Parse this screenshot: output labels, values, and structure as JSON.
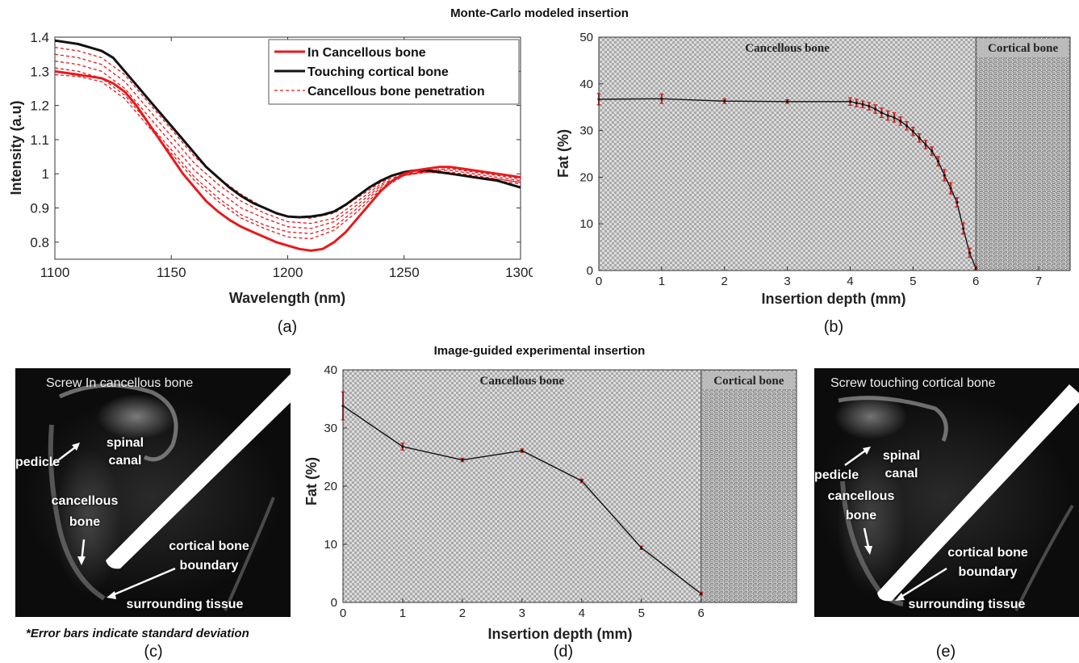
{
  "headers": {
    "top": "Monte-Carlo modeled insertion",
    "bottom": "Image-guided experimental insertion"
  },
  "panel_labels": {
    "a": "(a)",
    "b": "(b)",
    "c": "(c)",
    "d": "(d)",
    "e": "(e)"
  },
  "note": "*Error bars indicate standard deviation",
  "images": {
    "c": {
      "title": "Screw In  cancellous bone",
      "labels": {
        "pedicle": "pedicle",
        "spinal_canal_1": "spinal",
        "spinal_canal_2": "canal",
        "cancellous_1": "cancellous",
        "cancellous_2": "bone",
        "cortical_1": "cortical bone",
        "cortical_2": "boundary",
        "surrounding": "surrounding tissue"
      }
    },
    "e": {
      "title": "Screw touching cortical bone",
      "labels": {
        "pedicle": "pedicle",
        "spinal_canal_1": "spinal",
        "spinal_canal_2": "canal",
        "cancellous_1": "cancellous",
        "cancellous_2": "bone",
        "cortical_1": "cortical bone",
        "cortical_2": "boundary",
        "surrounding": "surrounding tissue"
      }
    }
  },
  "chart_data": [
    {
      "id": "a",
      "type": "line",
      "title": "",
      "xlabel": "Wavelength (nm)",
      "ylabel": "Intensity (a.u)",
      "xlim": [
        1100,
        1300
      ],
      "ylim": [
        0.75,
        1.4
      ],
      "xticks": [
        1100,
        1150,
        1200,
        1250,
        1300
      ],
      "yticks": [
        0.8,
        0.9,
        1,
        1.1,
        1.2,
        1.3,
        1.4
      ],
      "legend_position": "top-right",
      "legend": [
        {
          "label": "In Cancellous bone",
          "color": "#e8191c",
          "style": "solid-thick"
        },
        {
          "label": "Touching cortical bone",
          "color": "#111111",
          "style": "solid-thick"
        },
        {
          "label": "Cancellous bone penetration",
          "color": "#e8191c",
          "style": "dashed"
        }
      ],
      "series": [
        {
          "name": "Touching cortical bone",
          "color": "#111111",
          "style": "solid",
          "x": [
            1100,
            1105,
            1110,
            1115,
            1120,
            1125,
            1130,
            1135,
            1140,
            1145,
            1150,
            1155,
            1160,
            1165,
            1170,
            1175,
            1180,
            1185,
            1190,
            1195,
            1200,
            1205,
            1210,
            1215,
            1220,
            1225,
            1230,
            1235,
            1240,
            1245,
            1250,
            1255,
            1260,
            1265,
            1270,
            1275,
            1280,
            1285,
            1290,
            1295,
            1300
          ],
          "y": [
            1.39,
            1.385,
            1.38,
            1.37,
            1.36,
            1.34,
            1.3,
            1.26,
            1.22,
            1.18,
            1.14,
            1.1,
            1.06,
            1.02,
            0.99,
            0.96,
            0.935,
            0.915,
            0.9,
            0.885,
            0.875,
            0.873,
            0.875,
            0.88,
            0.89,
            0.91,
            0.935,
            0.96,
            0.98,
            0.995,
            1.005,
            1.01,
            1.01,
            1.005,
            1.0,
            0.995,
            0.99,
            0.985,
            0.98,
            0.97,
            0.96
          ]
        },
        {
          "name": "In Cancellous bone",
          "color": "#e8191c",
          "style": "solid",
          "x": [
            1100,
            1105,
            1110,
            1115,
            1120,
            1125,
            1130,
            1135,
            1140,
            1145,
            1150,
            1155,
            1160,
            1165,
            1170,
            1175,
            1180,
            1185,
            1190,
            1195,
            1200,
            1205,
            1210,
            1215,
            1220,
            1225,
            1230,
            1235,
            1240,
            1245,
            1250,
            1255,
            1260,
            1265,
            1270,
            1275,
            1280,
            1285,
            1290,
            1295,
            1300
          ],
          "y": [
            1.3,
            1.295,
            1.29,
            1.285,
            1.28,
            1.265,
            1.24,
            1.2,
            1.15,
            1.1,
            1.05,
            1.0,
            0.96,
            0.92,
            0.89,
            0.865,
            0.845,
            0.83,
            0.815,
            0.8,
            0.79,
            0.78,
            0.775,
            0.78,
            0.8,
            0.83,
            0.87,
            0.91,
            0.95,
            0.98,
            1.0,
            1.01,
            1.015,
            1.02,
            1.02,
            1.015,
            1.01,
            1.005,
            1.0,
            0.995,
            0.99
          ]
        },
        {
          "name": "Cancellous bone penetration 1",
          "color": "#e8191c",
          "style": "dashed",
          "x": [
            1100,
            1110,
            1120,
            1130,
            1140,
            1150,
            1160,
            1170,
            1180,
            1190,
            1200,
            1210,
            1220,
            1230,
            1240,
            1250,
            1260,
            1270,
            1280,
            1290,
            1300
          ],
          "y": [
            1.37,
            1.36,
            1.34,
            1.29,
            1.21,
            1.13,
            1.05,
            0.99,
            0.94,
            0.9,
            0.875,
            0.87,
            0.885,
            0.93,
            0.975,
            1.0,
            1.005,
            1.0,
            0.99,
            0.985,
            0.975
          ]
        },
        {
          "name": "Cancellous bone penetration 2",
          "color": "#e8191c",
          "style": "dashed",
          "x": [
            1100,
            1110,
            1120,
            1130,
            1140,
            1150,
            1160,
            1170,
            1180,
            1190,
            1200,
            1210,
            1220,
            1230,
            1240,
            1250,
            1260,
            1270,
            1280,
            1290,
            1300
          ],
          "y": [
            1.35,
            1.34,
            1.32,
            1.27,
            1.19,
            1.11,
            1.03,
            0.97,
            0.92,
            0.885,
            0.86,
            0.855,
            0.87,
            0.92,
            0.97,
            0.995,
            1.005,
            1.0,
            0.99,
            0.98,
            0.97
          ]
        },
        {
          "name": "Cancellous bone penetration 3",
          "color": "#e8191c",
          "style": "dashed",
          "x": [
            1100,
            1110,
            1120,
            1130,
            1140,
            1150,
            1160,
            1170,
            1180,
            1190,
            1200,
            1210,
            1220,
            1230,
            1240,
            1250,
            1260,
            1270,
            1280,
            1290,
            1300
          ],
          "y": [
            1.33,
            1.32,
            1.3,
            1.25,
            1.17,
            1.09,
            1.01,
            0.95,
            0.9,
            0.87,
            0.845,
            0.84,
            0.86,
            0.91,
            0.965,
            0.995,
            1.005,
            1.005,
            0.995,
            0.985,
            0.975
          ]
        },
        {
          "name": "Cancellous bone penetration 4",
          "color": "#e8191c",
          "style": "dashed",
          "x": [
            1100,
            1110,
            1120,
            1130,
            1140,
            1150,
            1160,
            1170,
            1180,
            1190,
            1200,
            1210,
            1220,
            1230,
            1240,
            1250,
            1260,
            1270,
            1280,
            1290,
            1300
          ],
          "y": [
            1.31,
            1.3,
            1.28,
            1.23,
            1.15,
            1.07,
            0.99,
            0.93,
            0.88,
            0.85,
            0.83,
            0.825,
            0.845,
            0.9,
            0.96,
            0.995,
            1.01,
            1.01,
            1.0,
            0.99,
            0.98
          ]
        },
        {
          "name": "Cancellous bone penetration 5",
          "color": "#e8191c",
          "style": "dashed",
          "x": [
            1100,
            1110,
            1120,
            1130,
            1140,
            1150,
            1160,
            1170,
            1180,
            1190,
            1200,
            1210,
            1220,
            1230,
            1240,
            1250,
            1260,
            1270,
            1280,
            1290,
            1300
          ],
          "y": [
            1.29,
            1.285,
            1.27,
            1.22,
            1.14,
            1.06,
            0.98,
            0.92,
            0.87,
            0.84,
            0.815,
            0.81,
            0.835,
            0.89,
            0.955,
            0.995,
            1.01,
            1.015,
            1.005,
            0.995,
            0.985
          ]
        }
      ]
    },
    {
      "id": "b",
      "type": "line",
      "title": "",
      "xlabel": "Insertion depth (mm)",
      "ylabel": "Fat (%)",
      "xlim": [
        0,
        7.5
      ],
      "ylim": [
        0,
        50
      ],
      "xticks": [
        0,
        1,
        2,
        3,
        4,
        5,
        6,
        7
      ],
      "yticks": [
        0,
        10,
        20,
        30,
        40,
        50
      ],
      "regions": [
        {
          "label": "Cancellous bone",
          "from": 0,
          "to": 6,
          "pattern": "checker"
        },
        {
          "label": "Cortical bone",
          "from": 6,
          "to": 7.5,
          "pattern": "dense"
        }
      ],
      "series": [
        {
          "name": "",
          "color": "#111111",
          "error_color": "#d11b1b",
          "x": [
            0,
            1,
            2,
            3,
            4,
            4.1,
            4.2,
            4.3,
            4.4,
            4.5,
            4.6,
            4.7,
            4.8,
            4.9,
            5.0,
            5.1,
            5.2,
            5.3,
            5.4,
            5.5,
            5.6,
            5.7,
            5.8,
            5.9,
            6.0
          ],
          "y": [
            36.7,
            36.8,
            36.3,
            36.2,
            36.2,
            35.9,
            35.6,
            35.2,
            34.6,
            33.8,
            33.2,
            32.8,
            32.0,
            31.0,
            29.8,
            28.4,
            27.0,
            25.6,
            23.4,
            20.4,
            17.6,
            14.6,
            9.0,
            3.8,
            0.5
          ],
          "err": [
            1.2,
            1.0,
            0.5,
            0.4,
            0.8,
            0.8,
            0.7,
            0.8,
            0.9,
            1.0,
            1.0,
            1.0,
            0.9,
            0.9,
            0.9,
            0.9,
            0.9,
            0.9,
            1.0,
            1.2,
            1.2,
            1.0,
            1.2,
            1.0,
            0.4
          ]
        }
      ]
    },
    {
      "id": "d",
      "type": "line",
      "title": "",
      "xlabel": "Insertion depth (mm)",
      "ylabel": "Fat (%)",
      "xlim": [
        0,
        7.6
      ],
      "ylim": [
        0,
        40
      ],
      "xticks": [
        0,
        1,
        2,
        3,
        4,
        5,
        6
      ],
      "yticks": [
        0,
        10,
        20,
        30,
        40
      ],
      "regions": [
        {
          "label": "Cancellous bone",
          "from": 0,
          "to": 6,
          "pattern": "checker"
        },
        {
          "label": "Cortical bone",
          "from": 6,
          "to": 7.6,
          "pattern": "dense"
        }
      ],
      "series": [
        {
          "name": "",
          "color": "#111111",
          "error_color": "#d11b1b",
          "x": [
            0,
            1,
            2,
            3,
            4,
            5,
            6
          ],
          "y": [
            33.8,
            26.8,
            24.5,
            26.1,
            20.9,
            9.4,
            1.5
          ],
          "err": [
            2.4,
            0.6,
            0.3,
            0.3,
            0.3,
            0.3,
            0.2
          ]
        }
      ]
    }
  ]
}
